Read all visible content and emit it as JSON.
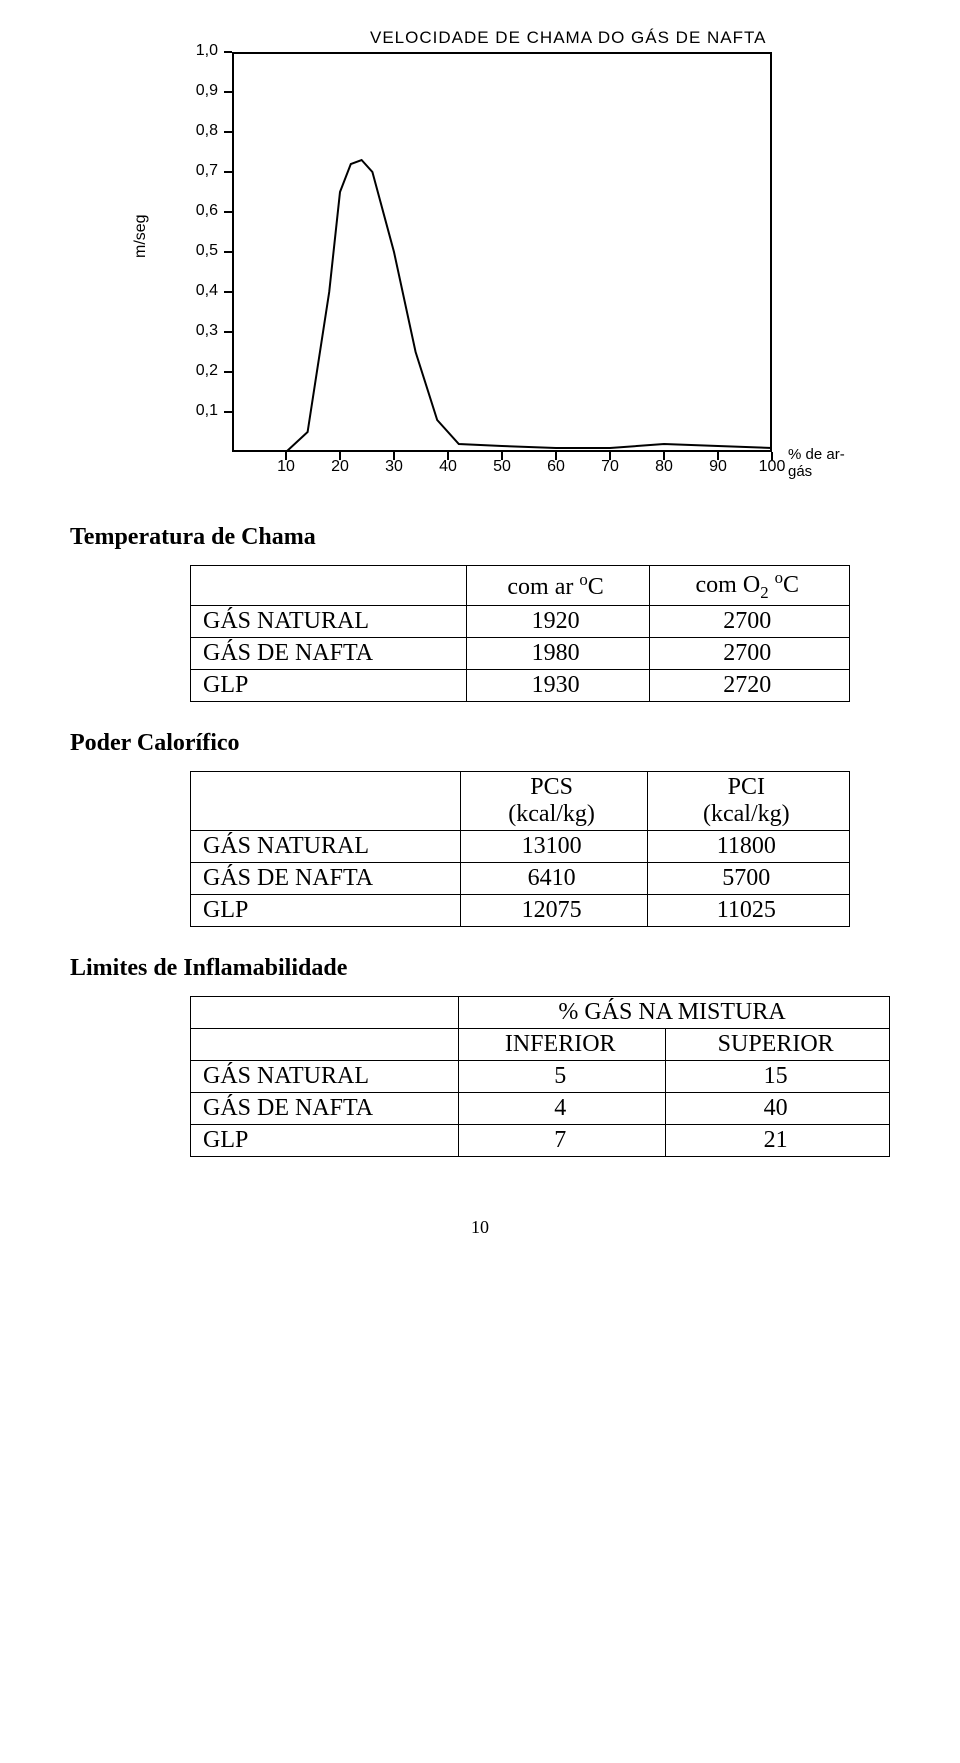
{
  "chart": {
    "type": "line",
    "title": "VELOCIDADE DE CHAMA DO GÁS DE NAFTA",
    "ylabel": "m/seg",
    "xlabel": "% de ar-gás",
    "title_fontsize": 17,
    "label_fontsize": 16,
    "background_color": "#ffffff",
    "axis_color": "#000000",
    "line_color": "#000000",
    "line_width": 2,
    "xlim": [
      0,
      100
    ],
    "ylim": [
      0,
      1.0
    ],
    "yticks": [
      0.1,
      0.2,
      0.3,
      0.4,
      0.5,
      0.6,
      0.7,
      0.8,
      0.9,
      1.0
    ],
    "ytick_labels": [
      "0,1",
      "0,2",
      "0,3",
      "0,4",
      "0,5",
      "0,6",
      "0,7",
      "0,8",
      "0,9",
      "1,0"
    ],
    "xticks": [
      10,
      20,
      30,
      40,
      50,
      60,
      70,
      80,
      90,
      100
    ],
    "points_x": [
      10,
      14,
      18,
      20,
      22,
      24,
      26,
      30,
      34,
      38,
      42,
      50,
      60,
      70,
      80,
      90,
      100
    ],
    "points_y": [
      0.0,
      0.05,
      0.4,
      0.65,
      0.72,
      0.73,
      0.7,
      0.5,
      0.25,
      0.08,
      0.02,
      0.015,
      0.01,
      0.01,
      0.02,
      0.015,
      0.01
    ]
  },
  "section1": {
    "heading": "Temperatura de Chama",
    "col1_prefix": "com ar ",
    "col1_unit_sup": "o",
    "col1_unit": "C",
    "col2_prefix": "com O",
    "col2_sub": "2",
    "col2_sup": "o",
    "col2_unit": "C",
    "rows": [
      {
        "label": "GÁS NATURAL",
        "c1": "1920",
        "c2": "2700"
      },
      {
        "label": "GÁS DE NAFTA",
        "c1": "1980",
        "c2": "2700"
      },
      {
        "label": "GLP",
        "c1": "1930",
        "c2": "2720"
      }
    ]
  },
  "section2": {
    "heading": "Poder Calorífico",
    "col1_l1": "PCS",
    "col1_l2": "(kcal/kg)",
    "col2_l1": "PCI",
    "col2_l2": "(kcal/kg)",
    "rows": [
      {
        "label": "GÁS NATURAL",
        "c1": "13100",
        "c2": "11800"
      },
      {
        "label": "GÁS DE NAFTA",
        "c1": "6410",
        "c2": "5700"
      },
      {
        "label": "GLP",
        "c1": "12075",
        "c2": "11025"
      }
    ]
  },
  "section3": {
    "heading": "Limites de Inflamabilidade",
    "group_header": "% GÁS NA MISTURA",
    "col1": "INFERIOR",
    "col2": "SUPERIOR",
    "rows": [
      {
        "label": "GÁS NATURAL",
        "c1": "5",
        "c2": "15"
      },
      {
        "label": "GÁS DE NAFTA",
        "c1": "4",
        "c2": "40"
      },
      {
        "label": "GLP",
        "c1": "7",
        "c2": "21"
      }
    ]
  },
  "page_number": "10"
}
